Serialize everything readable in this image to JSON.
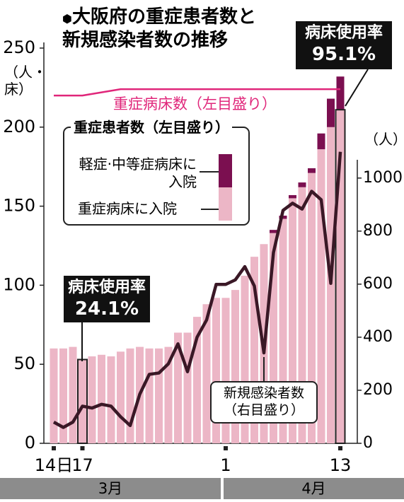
{
  "chart_data": {
    "type": "bar",
    "title": "大阪府の重症患者数と新規感染者数の推移",
    "ylabel": "（人・床）",
    "y2label": "（人）",
    "categories": [
      "14日",
      null,
      null,
      "17",
      null,
      null,
      null,
      null,
      null,
      null,
      null,
      null,
      null,
      null,
      null,
      null,
      null,
      null,
      "1",
      null,
      null,
      null,
      null,
      null,
      null,
      null,
      null,
      null,
      null,
      null,
      "13"
    ],
    "months": [
      "3月",
      "4月"
    ],
    "ylim": [
      0,
      250
    ],
    "yticks": [
      0,
      50,
      100,
      150,
      200,
      250
    ],
    "y2lim": [
      0,
      1490
    ],
    "y2ticks": [
      0,
      200,
      400,
      600,
      800,
      1000
    ],
    "legend_title": "重症患者数（左目盛り）",
    "series": [
      {
        "name": "重症病床に入院",
        "type": "bar",
        "color": "#ecb6c6",
        "values": [
          60,
          60,
          61,
          53,
          55,
          56,
          55,
          58,
          60,
          61,
          60,
          60,
          61,
          70,
          70,
          80,
          88,
          92,
          92,
          97,
          106,
          118,
          126,
          133,
          142,
          155,
          162,
          171,
          186,
          200,
          211
        ]
      },
      {
        "name": "軽症·中等症病床に入院",
        "type": "bar",
        "color": "#7b0f50",
        "values": [
          0,
          0,
          0,
          0,
          0,
          0,
          0,
          0,
          0,
          0,
          0,
          0,
          0,
          0,
          0,
          0,
          0,
          0,
          0,
          0,
          0,
          0,
          0,
          2,
          2,
          2,
          3,
          3,
          10,
          18,
          21
        ]
      },
      {
        "name": "重症病床数（左目盛り）",
        "type": "line",
        "color": "#e0267a",
        "values": [
          220,
          220,
          220,
          220,
          221,
          222,
          223,
          224,
          224,
          224,
          224,
          224,
          224,
          224,
          224,
          224,
          224,
          224,
          224,
          224,
          224,
          224,
          224,
          224,
          224,
          224,
          224,
          224,
          224,
          224,
          224
        ]
      },
      {
        "name": "新規感染者数（右目盛り）",
        "type": "line",
        "axis": "y2",
        "color": "#3a1826",
        "values": [
          80,
          60,
          80,
          140,
          133,
          147,
          140,
          100,
          67,
          185,
          260,
          265,
          300,
          375,
          270,
          400,
          465,
          599,
          599,
          616,
          666,
          593,
          341,
          719,
          878,
          905,
          883,
          950,
          918,
          603,
          1099
        ]
      }
    ],
    "annotations": [
      {
        "text": "病床使用率",
        "value": 24.1,
        "value_label": "24.1%"
      },
      {
        "text": "病床使用率",
        "value": 95.1,
        "value_label": "95.1%"
      }
    ]
  }
}
